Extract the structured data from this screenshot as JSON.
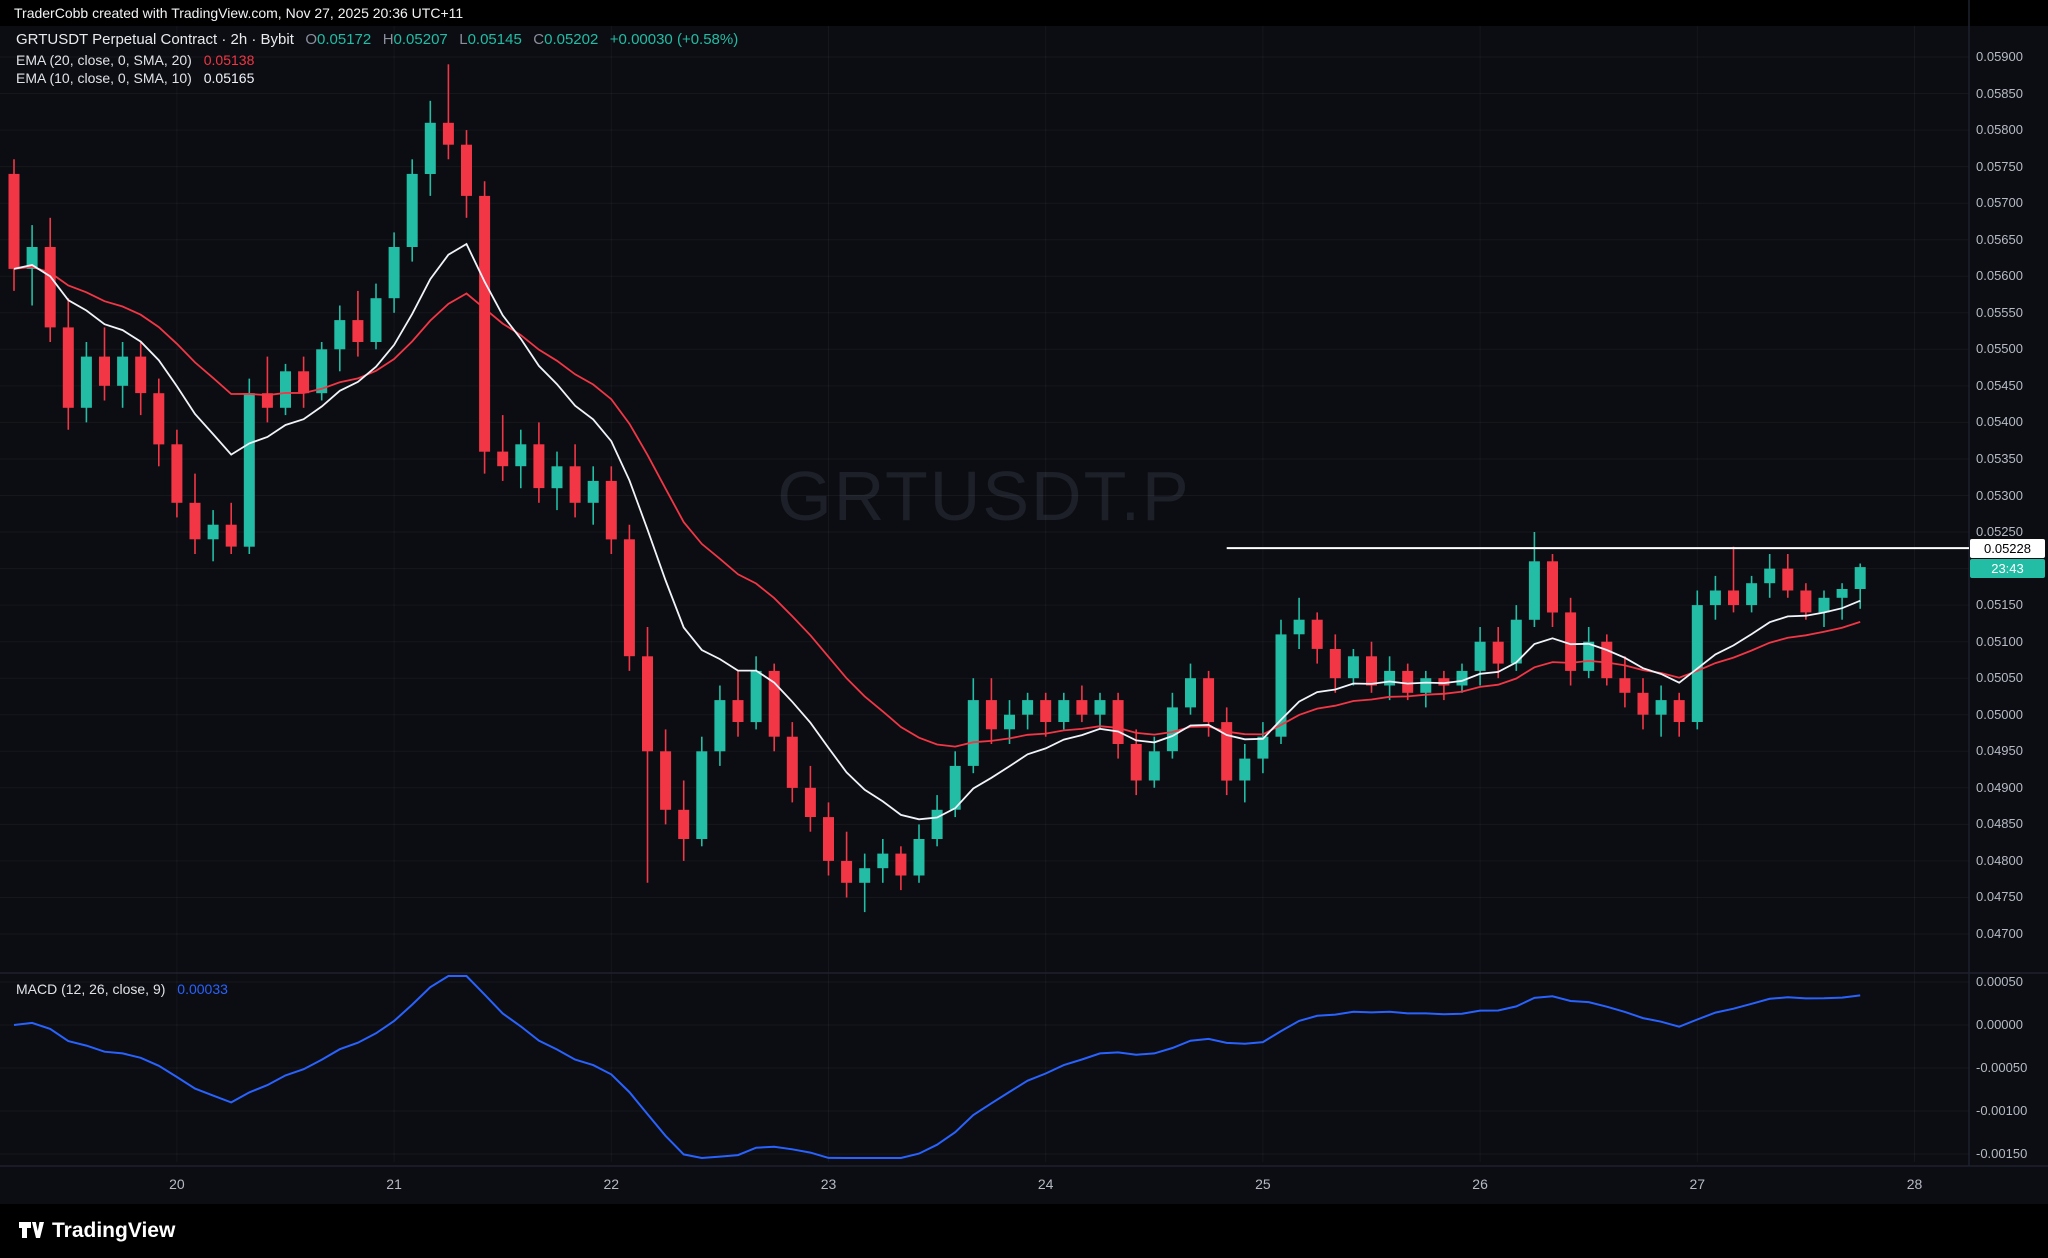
{
  "attribution": "TraderCobb created with TradingView.com, Nov 27, 2025 20:36 UTC+11",
  "header": {
    "symbol_title": "GRTUSDT Perpetual Contract · 2h · Bybit",
    "ohlc": {
      "o_label": "O",
      "o": "0.05172",
      "h_label": "H",
      "h": "0.05207",
      "l_label": "L",
      "l": "0.05145",
      "c_label": "C",
      "c": "0.05202",
      "change": "+0.00030 (+0.58%)"
    },
    "indicators": [
      {
        "label": "EMA (20, close, 0, SMA, 20)",
        "value": "0.05138"
      },
      {
        "label": "EMA (10, close, 0, SMA, 10)",
        "value": "0.05165"
      }
    ]
  },
  "watermark": "GRTUSDT.P",
  "price_axis": {
    "labels": [
      "0.05900",
      "0.05850",
      "0.05800",
      "0.05750",
      "0.05700",
      "0.05650",
      "0.05600",
      "0.05550",
      "0.05500",
      "0.05450",
      "0.05400",
      "0.05350",
      "0.05300",
      "0.05250",
      "0.05200",
      "0.05150",
      "0.05100",
      "0.05050",
      "0.05000",
      "0.04950",
      "0.04900",
      "0.04850",
      "0.04800",
      "0.04750",
      "0.04700"
    ]
  },
  "macd_panel": {
    "legend_label": "MACD (12, 26, close, 9)",
    "legend_value": "0.00033",
    "axis_labels": [
      "0.00050",
      "0.00000",
      "-0.00050",
      "-0.00100",
      "-0.00150"
    ],
    "axis_values": [
      0.0005,
      0,
      -0.0005,
      -0.001,
      -0.0015
    ]
  },
  "time_axis": {
    "labels": [
      "20",
      "21",
      "22",
      "23",
      "24",
      "25",
      "26",
      "27",
      "28"
    ]
  },
  "annotations": {
    "horizontal_ray": {
      "price": 0.05228,
      "label": "0.05228",
      "start_candle_index": 67
    },
    "countdown_label": "23:43"
  },
  "footer": {
    "brand": "TradingView"
  },
  "colors": {
    "up": "#23bca4",
    "down": "#f23645",
    "ema_fast": "#f0f3fa",
    "ema_slow": "#f23645",
    "macd_line": "#2962ff",
    "axis_text": "#b6bac4",
    "background": "#0b0d12"
  },
  "chart_data": {
    "type": "candlestick",
    "title": "GRTUSDT.P",
    "symbol": "GRTUSDT Perpetual Contract",
    "exchange": "Bybit",
    "interval": "2h",
    "x_axis_day_labels": [
      "20",
      "21",
      "22",
      "23",
      "24",
      "25",
      "26",
      "27",
      "28"
    ],
    "first_day_label_candle_index": 9,
    "candles_per_day": 12,
    "price_range": [
      0.047,
      0.059
    ],
    "price_grid_step": 0.0005,
    "candles": [
      [
        0.0574,
        0.0576,
        0.0558,
        0.0561
      ],
      [
        0.0561,
        0.0567,
        0.0556,
        0.0564
      ],
      [
        0.0564,
        0.0568,
        0.0551,
        0.0553
      ],
      [
        0.0553,
        0.0557,
        0.0539,
        0.0542
      ],
      [
        0.0542,
        0.0551,
        0.054,
        0.0549
      ],
      [
        0.0549,
        0.0553,
        0.0543,
        0.0545
      ],
      [
        0.0545,
        0.0551,
        0.0542,
        0.0549
      ],
      [
        0.0549,
        0.0551,
        0.0541,
        0.0544
      ],
      [
        0.0544,
        0.0546,
        0.0534,
        0.0537
      ],
      [
        0.0537,
        0.0539,
        0.0527,
        0.0529
      ],
      [
        0.0529,
        0.0533,
        0.0522,
        0.0524
      ],
      [
        0.0524,
        0.0528,
        0.0521,
        0.0526
      ],
      [
        0.0526,
        0.0529,
        0.0522,
        0.0523
      ],
      [
        0.0523,
        0.0546,
        0.0522,
        0.0544
      ],
      [
        0.0544,
        0.0549,
        0.054,
        0.0542
      ],
      [
        0.0542,
        0.0548,
        0.0541,
        0.0547
      ],
      [
        0.0547,
        0.0549,
        0.0542,
        0.0544
      ],
      [
        0.0544,
        0.0551,
        0.0543,
        0.055
      ],
      [
        0.055,
        0.0556,
        0.0547,
        0.0554
      ],
      [
        0.0554,
        0.0558,
        0.0549,
        0.0551
      ],
      [
        0.0551,
        0.0559,
        0.055,
        0.0557
      ],
      [
        0.0557,
        0.0566,
        0.0555,
        0.0564
      ],
      [
        0.0564,
        0.0576,
        0.0562,
        0.0574
      ],
      [
        0.0574,
        0.0584,
        0.0571,
        0.0581
      ],
      [
        0.0581,
        0.0589,
        0.0576,
        0.0578
      ],
      [
        0.0578,
        0.058,
        0.0568,
        0.0571
      ],
      [
        0.0571,
        0.0573,
        0.0533,
        0.0536
      ],
      [
        0.0536,
        0.0541,
        0.0532,
        0.0534
      ],
      [
        0.0534,
        0.0539,
        0.0531,
        0.0537
      ],
      [
        0.0537,
        0.054,
        0.0529,
        0.0531
      ],
      [
        0.0531,
        0.0536,
        0.0528,
        0.0534
      ],
      [
        0.0534,
        0.0537,
        0.0527,
        0.0529
      ],
      [
        0.0529,
        0.0534,
        0.0526,
        0.0532
      ],
      [
        0.0532,
        0.0534,
        0.0522,
        0.0524
      ],
      [
        0.0524,
        0.0526,
        0.0506,
        0.0508
      ],
      [
        0.0508,
        0.0512,
        0.0477,
        0.0495
      ],
      [
        0.0495,
        0.0498,
        0.0485,
        0.0487
      ],
      [
        0.0487,
        0.0491,
        0.048,
        0.0483
      ],
      [
        0.0483,
        0.0497,
        0.0482,
        0.0495
      ],
      [
        0.0495,
        0.0504,
        0.0493,
        0.0502
      ],
      [
        0.0502,
        0.0506,
        0.0497,
        0.0499
      ],
      [
        0.0499,
        0.0508,
        0.0498,
        0.0506
      ],
      [
        0.0506,
        0.0507,
        0.0495,
        0.0497
      ],
      [
        0.0497,
        0.0499,
        0.0488,
        0.049
      ],
      [
        0.049,
        0.0493,
        0.0484,
        0.0486
      ],
      [
        0.0486,
        0.0488,
        0.0478,
        0.048
      ],
      [
        0.048,
        0.0484,
        0.0475,
        0.0477
      ],
      [
        0.0477,
        0.0481,
        0.0473,
        0.0479
      ],
      [
        0.0479,
        0.0483,
        0.0477,
        0.0481
      ],
      [
        0.0481,
        0.0482,
        0.0476,
        0.0478
      ],
      [
        0.0478,
        0.0485,
        0.0477,
        0.0483
      ],
      [
        0.0483,
        0.0489,
        0.0482,
        0.0487
      ],
      [
        0.0487,
        0.0495,
        0.0486,
        0.0493
      ],
      [
        0.0493,
        0.0505,
        0.0492,
        0.0502
      ],
      [
        0.0502,
        0.0505,
        0.0496,
        0.0498
      ],
      [
        0.0498,
        0.0502,
        0.0496,
        0.05
      ],
      [
        0.05,
        0.0503,
        0.0498,
        0.0502
      ],
      [
        0.0502,
        0.0503,
        0.0497,
        0.0499
      ],
      [
        0.0499,
        0.0503,
        0.0498,
        0.0502
      ],
      [
        0.0502,
        0.0504,
        0.0499,
        0.05
      ],
      [
        0.05,
        0.0503,
        0.0498,
        0.0502
      ],
      [
        0.0502,
        0.0503,
        0.0494,
        0.0496
      ],
      [
        0.0496,
        0.0498,
        0.0489,
        0.0491
      ],
      [
        0.0491,
        0.0497,
        0.049,
        0.0495
      ],
      [
        0.0495,
        0.0503,
        0.0494,
        0.0501
      ],
      [
        0.0501,
        0.0507,
        0.05,
        0.0505
      ],
      [
        0.0505,
        0.0506,
        0.0497,
        0.0499
      ],
      [
        0.0499,
        0.0501,
        0.0489,
        0.0491
      ],
      [
        0.0491,
        0.0496,
        0.0488,
        0.0494
      ],
      [
        0.0494,
        0.0499,
        0.0492,
        0.0497
      ],
      [
        0.0497,
        0.0513,
        0.0496,
        0.0511
      ],
      [
        0.0511,
        0.0516,
        0.0509,
        0.0513
      ],
      [
        0.0513,
        0.0514,
        0.0507,
        0.0509
      ],
      [
        0.0509,
        0.0511,
        0.0503,
        0.0505
      ],
      [
        0.0505,
        0.0509,
        0.0504,
        0.0508
      ],
      [
        0.0508,
        0.051,
        0.0503,
        0.0504
      ],
      [
        0.0504,
        0.0508,
        0.0502,
        0.0506
      ],
      [
        0.0506,
        0.0507,
        0.0502,
        0.0503
      ],
      [
        0.0503,
        0.0506,
        0.0501,
        0.0505
      ],
      [
        0.0505,
        0.0506,
        0.0502,
        0.0504
      ],
      [
        0.0504,
        0.0507,
        0.0503,
        0.0506
      ],
      [
        0.0506,
        0.0512,
        0.0504,
        0.051
      ],
      [
        0.051,
        0.0512,
        0.0505,
        0.0507
      ],
      [
        0.0507,
        0.0515,
        0.0506,
        0.0513
      ],
      [
        0.0513,
        0.0525,
        0.0512,
        0.0521
      ],
      [
        0.0521,
        0.0522,
        0.0512,
        0.0514
      ],
      [
        0.0514,
        0.0516,
        0.0504,
        0.0506
      ],
      [
        0.0506,
        0.0512,
        0.0505,
        0.051
      ],
      [
        0.051,
        0.0511,
        0.0504,
        0.0505
      ],
      [
        0.0505,
        0.0508,
        0.0501,
        0.0503
      ],
      [
        0.0503,
        0.0505,
        0.0498,
        0.05
      ],
      [
        0.05,
        0.0504,
        0.0497,
        0.0502
      ],
      [
        0.0502,
        0.0503,
        0.0497,
        0.0499
      ],
      [
        0.0499,
        0.0517,
        0.0498,
        0.0515
      ],
      [
        0.0515,
        0.0519,
        0.0513,
        0.0517
      ],
      [
        0.0517,
        0.0523,
        0.0514,
        0.0515
      ],
      [
        0.0515,
        0.0519,
        0.0514,
        0.0518
      ],
      [
        0.0518,
        0.0522,
        0.0516,
        0.052
      ],
      [
        0.052,
        0.0522,
        0.0516,
        0.0517
      ],
      [
        0.0517,
        0.0518,
        0.0513,
        0.0514
      ],
      [
        0.0514,
        0.0517,
        0.0512,
        0.0516
      ],
      [
        0.0516,
        0.0518,
        0.0513,
        0.05172
      ],
      [
        0.05172,
        0.05207,
        0.05145,
        0.05202
      ]
    ],
    "overlays": [
      {
        "name": "EMA 10",
        "period": 10,
        "last_value": 0.05165
      },
      {
        "name": "EMA 20",
        "period": 20,
        "last_value": 0.05138
      }
    ],
    "sub_chart": {
      "type": "line",
      "name": "MACD",
      "params": [
        12,
        26,
        9
      ],
      "last_value": 0.00033,
      "y_ticks": [
        0.0005,
        0,
        -0.0005,
        -0.001,
        -0.0015
      ]
    },
    "annotations": [
      {
        "type": "horizontal_ray",
        "price": 0.05228
      }
    ]
  }
}
